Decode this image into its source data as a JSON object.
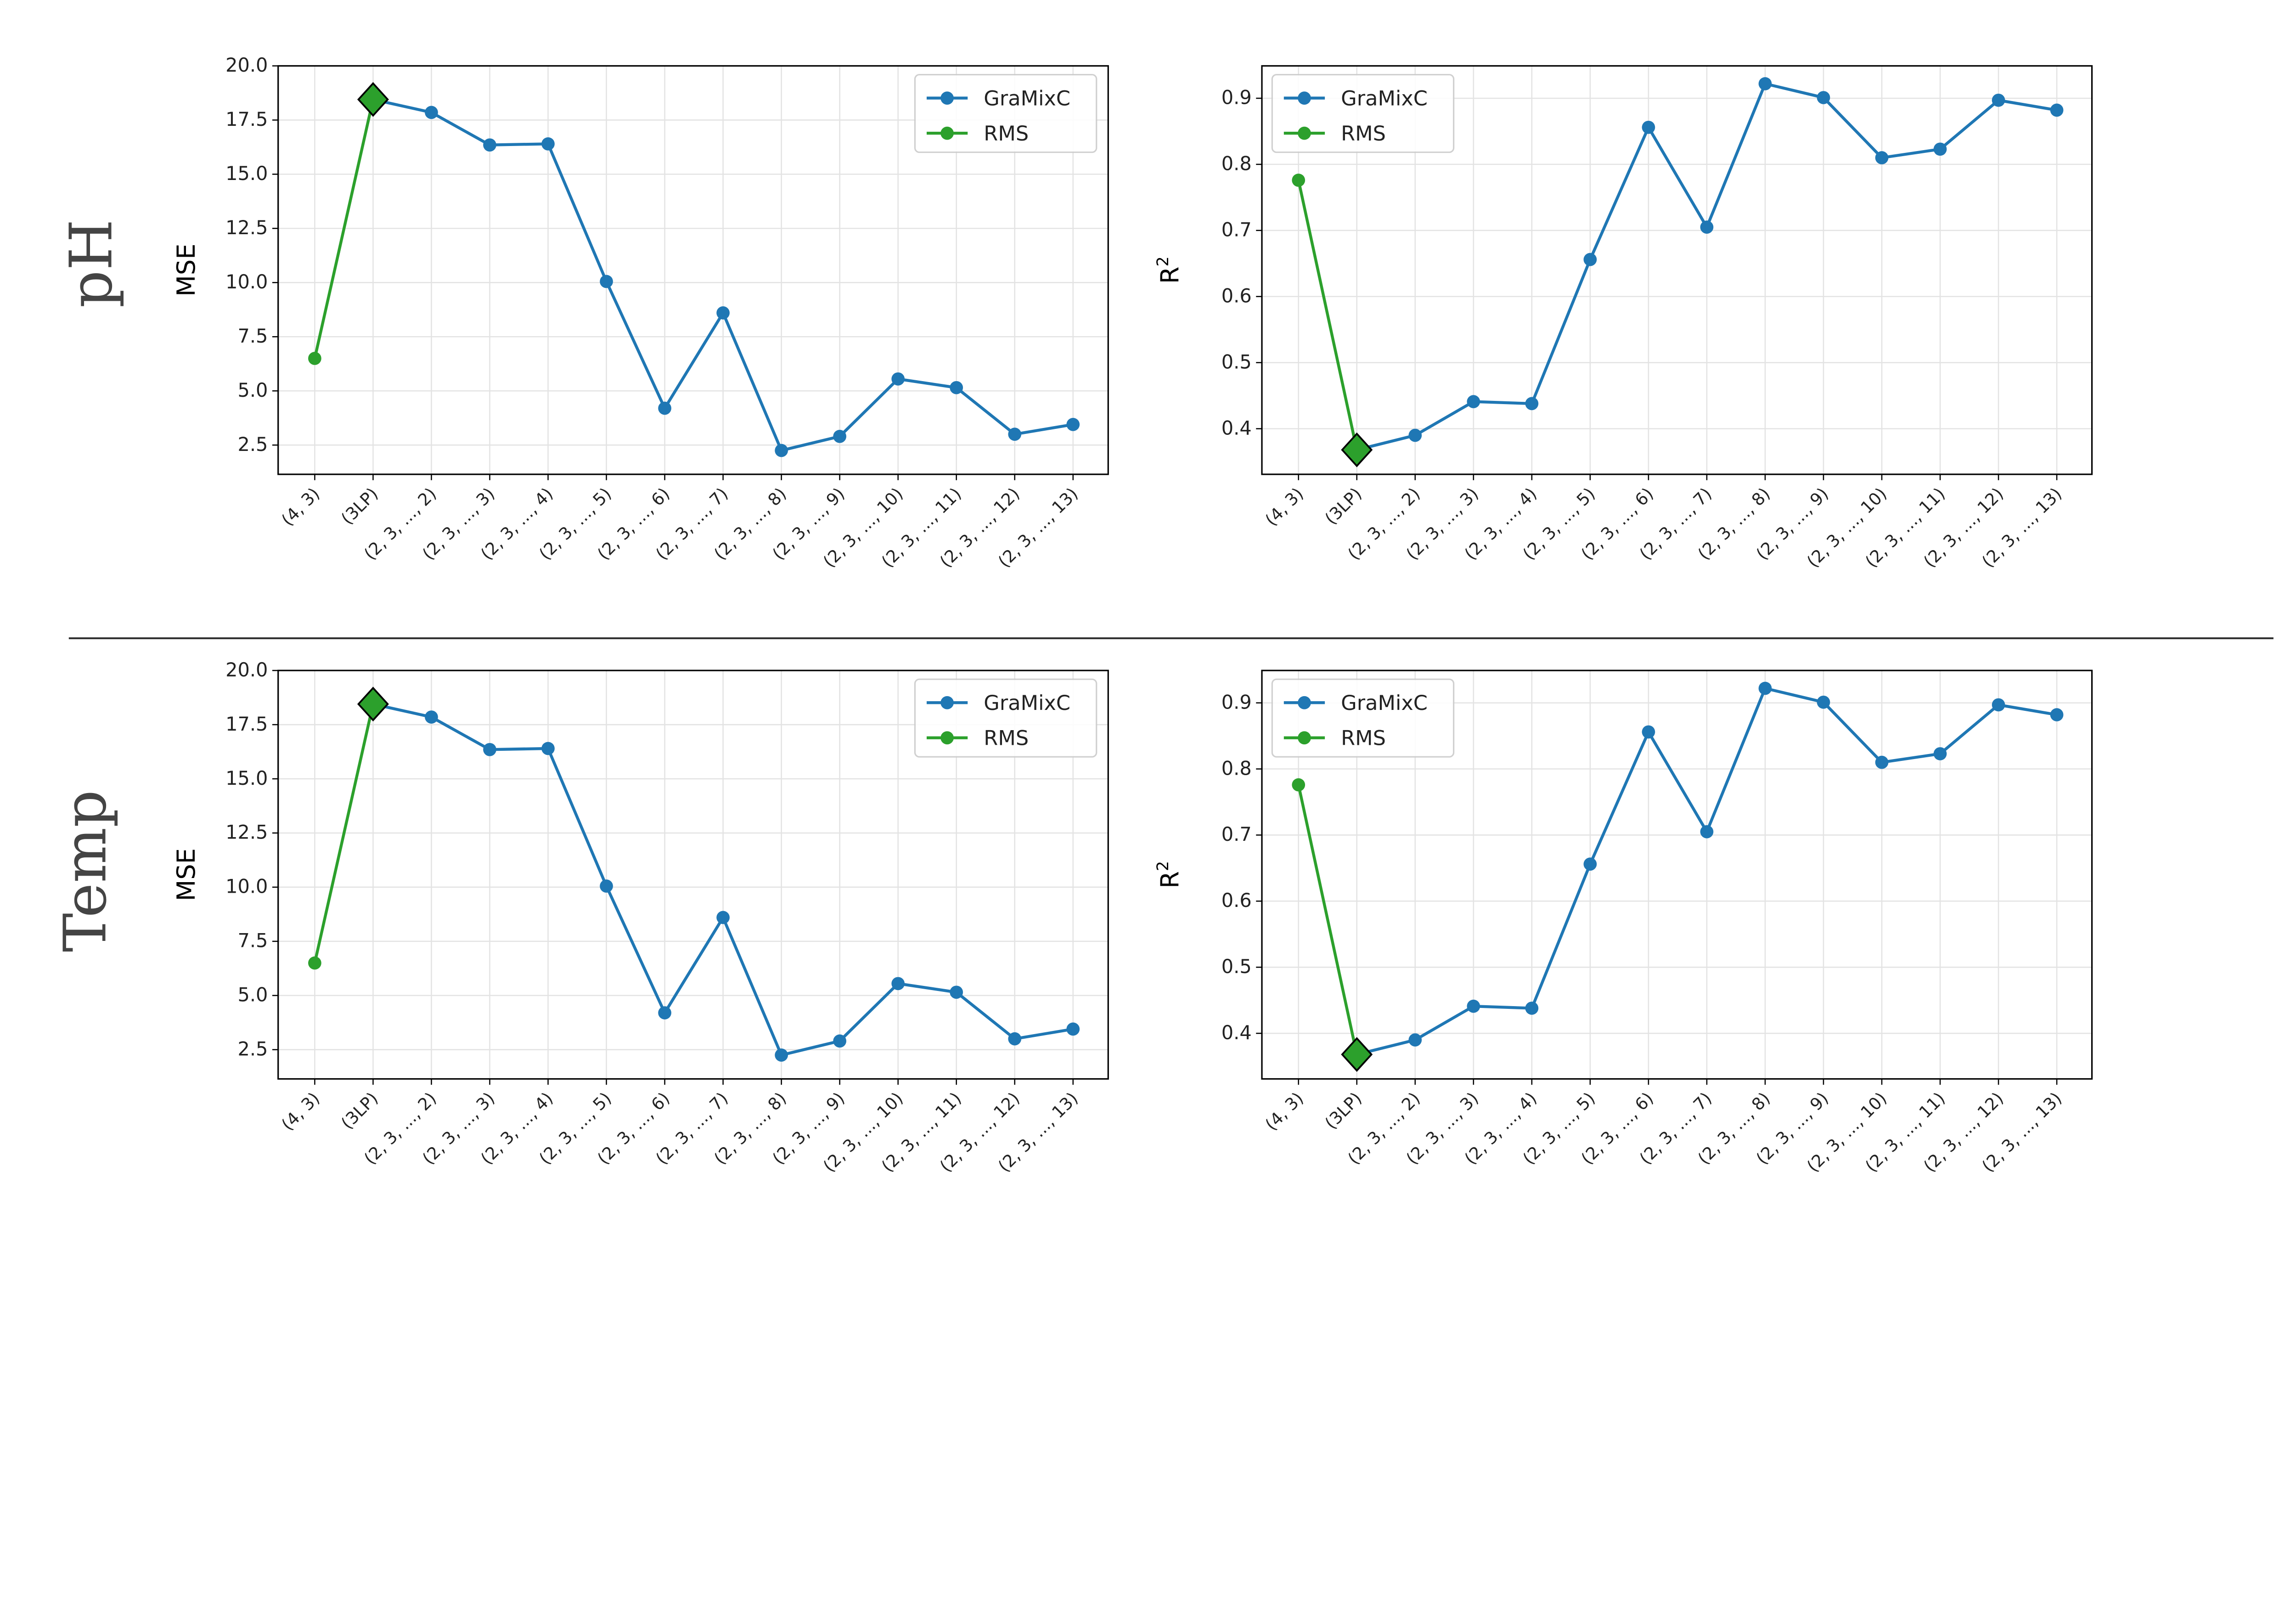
{
  "row_labels": [
    "pH",
    "Temp"
  ],
  "colors": {
    "gramixc": "#1f77b4",
    "rms": "#2ca02c",
    "diamond_edge": "#000000"
  },
  "chart_data": [
    {
      "type": "line",
      "row": "pH",
      "ylabel": "MSE",
      "ylim": [
        1.15,
        20.0
      ],
      "yticks": [
        "2.5",
        "5.0",
        "7.5",
        "10.0",
        "12.5",
        "15.0",
        "17.5",
        "20.0"
      ],
      "legend": [
        "GraMixC",
        "RMS"
      ],
      "legend_position": "top-right",
      "grid": true,
      "categories": [
        "(4, 3)",
        "(3LP)",
        "(2, 3, ..., 2)",
        "(2, 3, ..., 3)",
        "(2, 3, ..., 4)",
        "(2, 3, ..., 5)",
        "(2, 3, ..., 6)",
        "(2, 3, ..., 7)",
        "(2, 3, ..., 8)",
        "(2, 3, ..., 9)",
        "(2, 3, ..., 10)",
        "(2, 3, ..., 11)",
        "(2, 3, ..., 12)",
        "(2, 3, ..., 13)"
      ],
      "series": [
        {
          "name": "RMS",
          "x": [
            0,
            1
          ],
          "values": [
            6.5,
            18.45
          ]
        },
        {
          "name": "GraMixC",
          "x": [
            1,
            2,
            3,
            4,
            5,
            6,
            7,
            8,
            9,
            10,
            11,
            12,
            13
          ],
          "values": [
            18.45,
            17.85,
            16.35,
            16.4,
            10.05,
            4.2,
            8.6,
            2.25,
            2.9,
            5.55,
            5.15,
            3.0,
            3.45
          ]
        }
      ],
      "highlight": {
        "category": "(3LP)",
        "value": 18.45,
        "marker": "diamond"
      }
    },
    {
      "type": "line",
      "row": "pH",
      "ylabel": "R2",
      "ylim": [
        0.331,
        0.949
      ],
      "yticks": [
        "0.4",
        "0.5",
        "0.6",
        "0.7",
        "0.8",
        "0.9"
      ],
      "legend": [
        "GraMixC",
        "RMS"
      ],
      "legend_position": "top-left",
      "grid": true,
      "categories": [
        "(4, 3)",
        "(3LP)",
        "(2, 3, ..., 2)",
        "(2, 3, ..., 3)",
        "(2, 3, ..., 4)",
        "(2, 3, ..., 5)",
        "(2, 3, ..., 6)",
        "(2, 3, ..., 7)",
        "(2, 3, ..., 8)",
        "(2, 3, ..., 9)",
        "(2, 3, ..., 10)",
        "(2, 3, ..., 11)",
        "(2, 3, ..., 12)",
        "(2, 3, ..., 13)"
      ],
      "series": [
        {
          "name": "RMS",
          "x": [
            0,
            1
          ],
          "values": [
            0.776,
            0.368
          ]
        },
        {
          "name": "GraMixC",
          "x": [
            1,
            2,
            3,
            4,
            5,
            6,
            7,
            8,
            9,
            10,
            11,
            12,
            13
          ],
          "values": [
            0.368,
            0.39,
            0.441,
            0.438,
            0.656,
            0.856,
            0.705,
            0.922,
            0.901,
            0.81,
            0.823,
            0.897,
            0.882
          ]
        }
      ],
      "highlight": {
        "category": "(3LP)",
        "value": 0.368,
        "marker": "diamond"
      }
    },
    {
      "type": "line",
      "row": "Temp",
      "ylabel": "MSE",
      "ylim": [
        1.15,
        20.0
      ],
      "yticks": [
        "2.5",
        "5.0",
        "7.5",
        "10.0",
        "12.5",
        "15.0",
        "17.5",
        "20.0"
      ],
      "legend": [
        "GraMixC",
        "RMS"
      ],
      "legend_position": "top-right",
      "grid": true,
      "categories": [
        "(4, 3)",
        "(3LP)",
        "(2, 3, ..., 2)",
        "(2, 3, ..., 3)",
        "(2, 3, ..., 4)",
        "(2, 3, ..., 5)",
        "(2, 3, ..., 6)",
        "(2, 3, ..., 7)",
        "(2, 3, ..., 8)",
        "(2, 3, ..., 9)",
        "(2, 3, ..., 10)",
        "(2, 3, ..., 11)",
        "(2, 3, ..., 12)",
        "(2, 3, ..., 13)"
      ],
      "series": [
        {
          "name": "RMS",
          "x": [
            0,
            1
          ],
          "values": [
            6.5,
            18.45
          ]
        },
        {
          "name": "GraMixC",
          "x": [
            1,
            2,
            3,
            4,
            5,
            6,
            7,
            8,
            9,
            10,
            11,
            12,
            13
          ],
          "values": [
            18.45,
            17.85,
            16.35,
            16.4,
            10.05,
            4.2,
            8.6,
            2.25,
            2.9,
            5.55,
            5.15,
            3.0,
            3.45
          ]
        }
      ],
      "highlight": {
        "category": "(3LP)",
        "value": 18.45,
        "marker": "diamond"
      }
    },
    {
      "type": "line",
      "row": "Temp",
      "ylabel": "R2",
      "ylim": [
        0.331,
        0.949
      ],
      "yticks": [
        "0.4",
        "0.5",
        "0.6",
        "0.7",
        "0.8",
        "0.9"
      ],
      "legend": [
        "GraMixC",
        "RMS"
      ],
      "legend_position": "top-left",
      "grid": true,
      "categories": [
        "(4, 3)",
        "(3LP)",
        "(2, 3, ..., 2)",
        "(2, 3, ..., 3)",
        "(2, 3, ..., 4)",
        "(2, 3, ..., 5)",
        "(2, 3, ..., 6)",
        "(2, 3, ..., 7)",
        "(2, 3, ..., 8)",
        "(2, 3, ..., 9)",
        "(2, 3, ..., 10)",
        "(2, 3, ..., 11)",
        "(2, 3, ..., 12)",
        "(2, 3, ..., 13)"
      ],
      "series": [
        {
          "name": "RMS",
          "x": [
            0,
            1
          ],
          "values": [
            0.776,
            0.368
          ]
        },
        {
          "name": "GraMixC",
          "x": [
            1,
            2,
            3,
            4,
            5,
            6,
            7,
            8,
            9,
            10,
            11,
            12,
            13
          ],
          "values": [
            0.368,
            0.39,
            0.441,
            0.438,
            0.656,
            0.856,
            0.705,
            0.922,
            0.901,
            0.81,
            0.823,
            0.897,
            0.882
          ]
        }
      ],
      "highlight": {
        "category": "(3LP)",
        "value": 0.368,
        "marker": "diamond"
      }
    }
  ]
}
